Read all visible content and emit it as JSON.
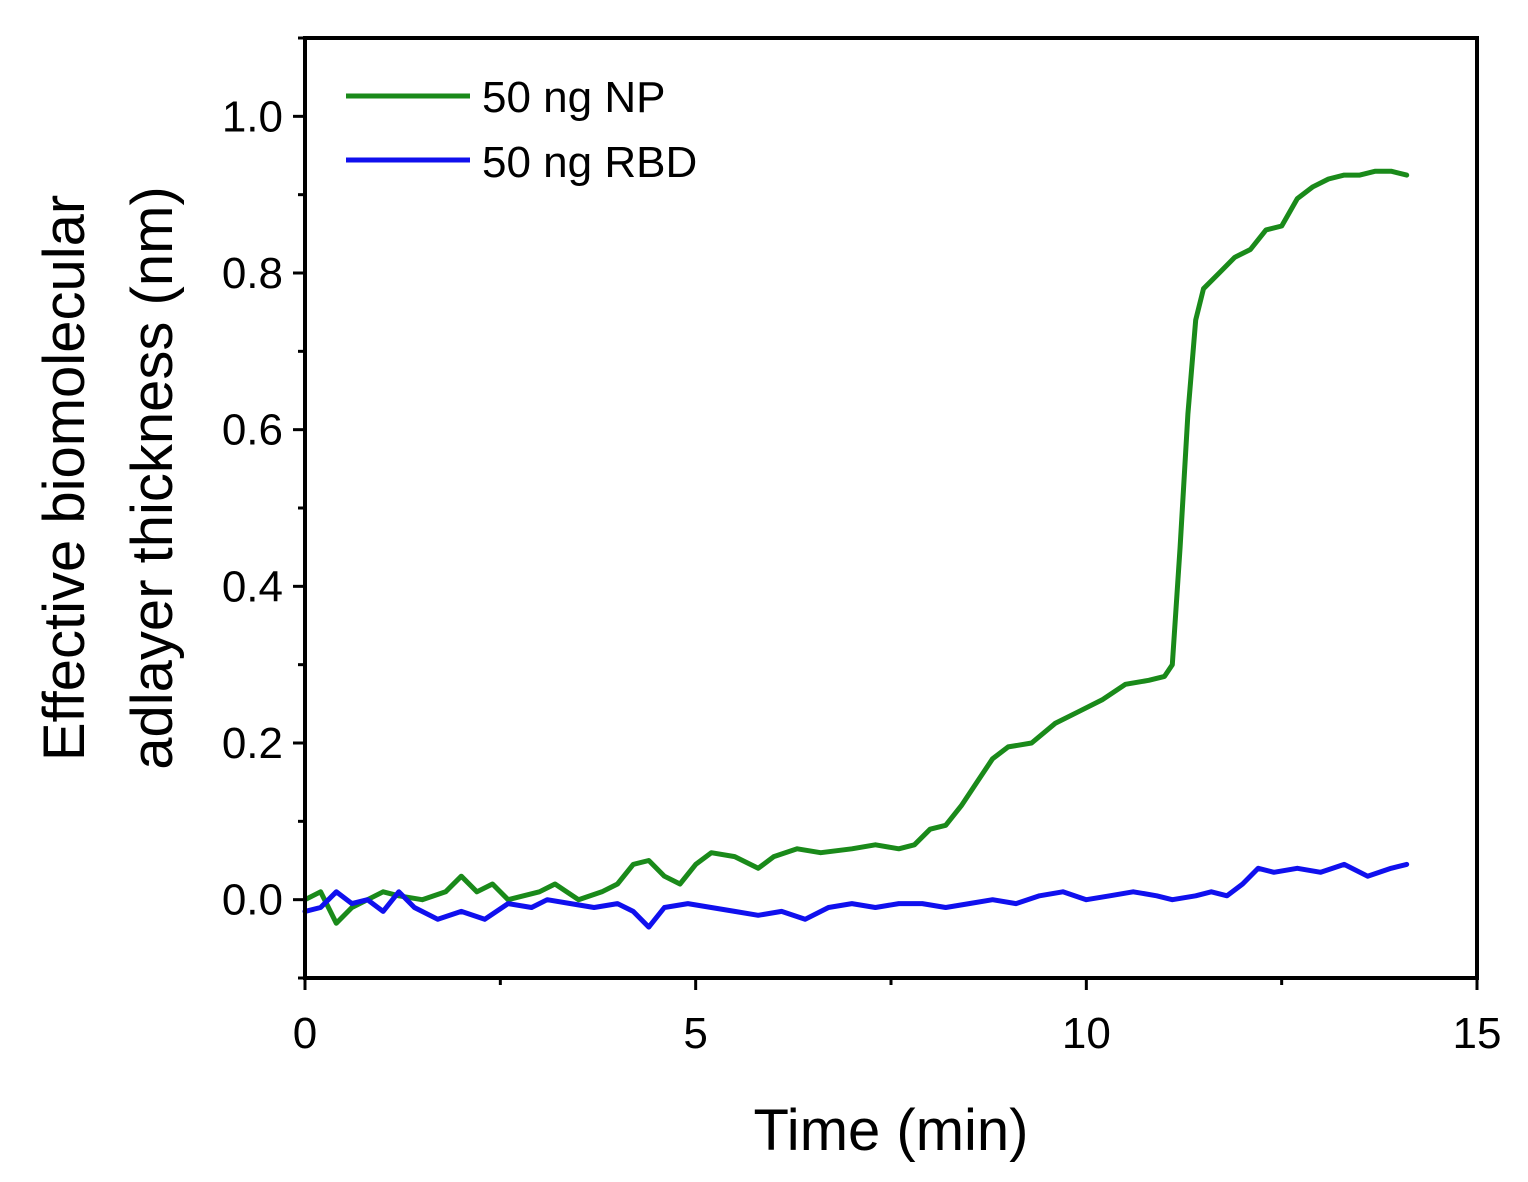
{
  "chart_data": {
    "type": "line",
    "xlabel": "Time (min)",
    "ylabel_lines": [
      "Effective biomolecular",
      "adlayer thickness (nm)"
    ],
    "xlim": [
      0,
      15
    ],
    "ylim": [
      -0.1,
      1.1
    ],
    "xticks": [
      0,
      5,
      10,
      15
    ],
    "xtick_labels": [
      "0",
      "5",
      "10",
      "15"
    ],
    "yticks": [
      0.0,
      0.2,
      0.4,
      0.6,
      0.8,
      1.0
    ],
    "ytick_labels": [
      "0.0",
      "0.2",
      "0.4",
      "0.6",
      "0.8",
      "1.0"
    ],
    "legend_position": "top-left",
    "series": [
      {
        "name": "50 ng NP",
        "color": "#1a8a1a",
        "points": [
          [
            0.0,
            0.0
          ],
          [
            0.2,
            0.01
          ],
          [
            0.4,
            -0.03
          ],
          [
            0.6,
            -0.01
          ],
          [
            0.8,
            0.0
          ],
          [
            1.0,
            0.01
          ],
          [
            1.2,
            0.005
          ],
          [
            1.5,
            0.0
          ],
          [
            1.8,
            0.01
          ],
          [
            2.0,
            0.03
          ],
          [
            2.2,
            0.01
          ],
          [
            2.4,
            0.02
          ],
          [
            2.6,
            0.0
          ],
          [
            3.0,
            0.01
          ],
          [
            3.2,
            0.02
          ],
          [
            3.5,
            0.0
          ],
          [
            3.8,
            0.01
          ],
          [
            4.0,
            0.02
          ],
          [
            4.2,
            0.045
          ],
          [
            4.4,
            0.05
          ],
          [
            4.6,
            0.03
          ],
          [
            4.8,
            0.02
          ],
          [
            5.0,
            0.045
          ],
          [
            5.2,
            0.06
          ],
          [
            5.5,
            0.055
          ],
          [
            5.8,
            0.04
          ],
          [
            6.0,
            0.055
          ],
          [
            6.3,
            0.065
          ],
          [
            6.6,
            0.06
          ],
          [
            7.0,
            0.065
          ],
          [
            7.3,
            0.07
          ],
          [
            7.6,
            0.065
          ],
          [
            7.8,
            0.07
          ],
          [
            8.0,
            0.09
          ],
          [
            8.2,
            0.095
          ],
          [
            8.4,
            0.12
          ],
          [
            8.6,
            0.15
          ],
          [
            8.8,
            0.18
          ],
          [
            9.0,
            0.195
          ],
          [
            9.3,
            0.2
          ],
          [
            9.6,
            0.225
          ],
          [
            9.9,
            0.24
          ],
          [
            10.2,
            0.255
          ],
          [
            10.5,
            0.275
          ],
          [
            10.8,
            0.28
          ],
          [
            11.0,
            0.285
          ],
          [
            11.1,
            0.3
          ],
          [
            11.2,
            0.45
          ],
          [
            11.3,
            0.62
          ],
          [
            11.4,
            0.74
          ],
          [
            11.5,
            0.78
          ],
          [
            11.7,
            0.8
          ],
          [
            11.9,
            0.82
          ],
          [
            12.1,
            0.83
          ],
          [
            12.3,
            0.855
          ],
          [
            12.5,
            0.86
          ],
          [
            12.7,
            0.895
          ],
          [
            12.9,
            0.91
          ],
          [
            13.1,
            0.92
          ],
          [
            13.3,
            0.925
          ],
          [
            13.5,
            0.925
          ],
          [
            13.7,
            0.93
          ],
          [
            13.9,
            0.93
          ],
          [
            14.1,
            0.925
          ]
        ]
      },
      {
        "name": "50 ng RBD",
        "color": "#1010ee",
        "points": [
          [
            0.0,
            -0.015
          ],
          [
            0.2,
            -0.01
          ],
          [
            0.4,
            0.01
          ],
          [
            0.6,
            -0.005
          ],
          [
            0.8,
            0.0
          ],
          [
            1.0,
            -0.015
          ],
          [
            1.2,
            0.01
          ],
          [
            1.4,
            -0.01
          ],
          [
            1.7,
            -0.025
          ],
          [
            2.0,
            -0.015
          ],
          [
            2.3,
            -0.025
          ],
          [
            2.6,
            -0.005
          ],
          [
            2.9,
            -0.01
          ],
          [
            3.1,
            0.0
          ],
          [
            3.4,
            -0.005
          ],
          [
            3.7,
            -0.01
          ],
          [
            4.0,
            -0.005
          ],
          [
            4.2,
            -0.015
          ],
          [
            4.4,
            -0.035
          ],
          [
            4.6,
            -0.01
          ],
          [
            4.9,
            -0.005
          ],
          [
            5.2,
            -0.01
          ],
          [
            5.5,
            -0.015
          ],
          [
            5.8,
            -0.02
          ],
          [
            6.1,
            -0.015
          ],
          [
            6.4,
            -0.025
          ],
          [
            6.7,
            -0.01
          ],
          [
            7.0,
            -0.005
          ],
          [
            7.3,
            -0.01
          ],
          [
            7.6,
            -0.005
          ],
          [
            7.9,
            -0.005
          ],
          [
            8.2,
            -0.01
          ],
          [
            8.5,
            -0.005
          ],
          [
            8.8,
            0.0
          ],
          [
            9.1,
            -0.005
          ],
          [
            9.4,
            0.005
          ],
          [
            9.7,
            0.01
          ],
          [
            10.0,
            0.0
          ],
          [
            10.3,
            0.005
          ],
          [
            10.6,
            0.01
          ],
          [
            10.9,
            0.005
          ],
          [
            11.1,
            0.0
          ],
          [
            11.4,
            0.005
          ],
          [
            11.6,
            0.01
          ],
          [
            11.8,
            0.005
          ],
          [
            12.0,
            0.02
          ],
          [
            12.2,
            0.04
          ],
          [
            12.4,
            0.035
          ],
          [
            12.7,
            0.04
          ],
          [
            13.0,
            0.035
          ],
          [
            13.3,
            0.045
          ],
          [
            13.6,
            0.03
          ],
          [
            13.9,
            0.04
          ],
          [
            14.1,
            0.045
          ]
        ]
      }
    ]
  }
}
